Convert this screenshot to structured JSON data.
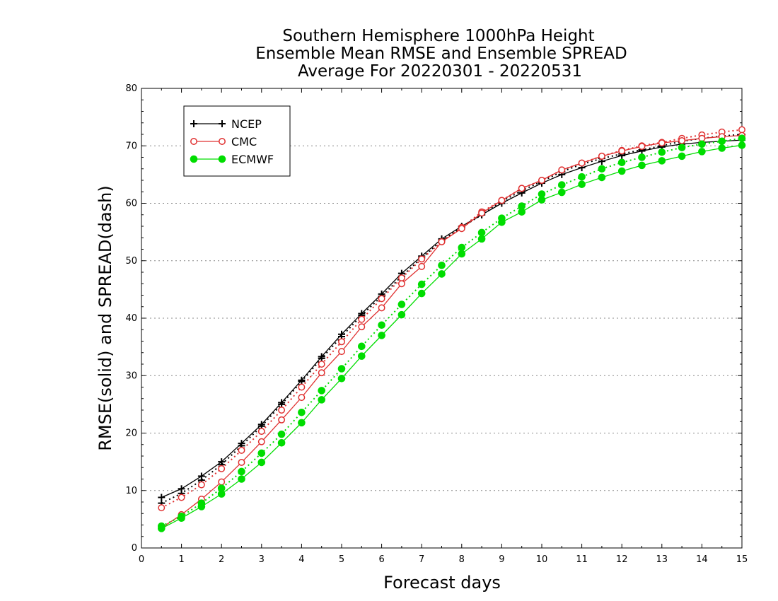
{
  "chart_data": {
    "type": "line",
    "title": [
      "Southern Hemisphere 1000hPa Height",
      "Ensemble Mean RMSE and Ensemble SPREAD",
      "Average For 20220301 - 20220531"
    ],
    "xlabel": "Forecast days",
    "ylabel": "RMSE(solid) and SPREAD(dash)",
    "xlim": [
      0,
      15
    ],
    "ylim": [
      0,
      80
    ],
    "xticks": [
      "0",
      "1",
      "2",
      "3",
      "4",
      "5",
      "6",
      "7",
      "8",
      "9",
      "10",
      "11",
      "12",
      "13",
      "14",
      "15"
    ],
    "yticks": [
      "0",
      "10",
      "20",
      "30",
      "40",
      "50",
      "60",
      "70",
      "80"
    ],
    "grid": "horizontal dotted",
    "legend_position": "top-left",
    "x": [
      0.5,
      1,
      1.5,
      2,
      2.5,
      3,
      3.5,
      4,
      4.5,
      5,
      5.5,
      6,
      6.5,
      7,
      7.5,
      8,
      8.5,
      9,
      9.5,
      10,
      10.5,
      11,
      11.5,
      12,
      12.5,
      13,
      13.5,
      14,
      14.5,
      15
    ],
    "series": [
      {
        "name": "NCEP",
        "color": "#000000",
        "marker": "plus",
        "rmse": [
          8.8,
          10.3,
          12.5,
          15.0,
          18.2,
          21.5,
          25.3,
          29.2,
          33.3,
          37.2,
          40.8,
          44.2,
          47.8,
          50.8,
          53.8,
          56.0,
          58.0,
          60.0,
          61.8,
          63.5,
          65.0,
          66.2,
          67.3,
          68.3,
          69.1,
          69.8,
          70.3,
          70.6,
          70.8,
          71.0
        ],
        "spread": [
          7.8,
          9.5,
          11.8,
          14.5,
          17.8,
          21.2,
          25.0,
          29.0,
          33.0,
          36.8,
          40.5,
          43.8,
          47.3,
          50.5,
          53.5,
          55.8,
          58.0,
          60.3,
          62.2,
          63.8,
          65.5,
          66.8,
          67.8,
          68.6,
          69.3,
          70.0,
          70.8,
          71.3,
          71.7,
          72.0
        ]
      },
      {
        "name": "CMC",
        "color": "#e03030",
        "marker": "open-circle",
        "rmse": [
          3.5,
          5.8,
          8.5,
          11.5,
          14.9,
          18.5,
          22.3,
          26.2,
          30.5,
          34.2,
          38.5,
          41.8,
          46.0,
          49.0,
          53.3,
          55.6,
          58.3,
          60.5,
          62.6,
          64.0,
          65.8,
          67.0,
          68.2,
          69.1,
          69.9,
          70.5,
          70.9,
          71.3,
          71.6,
          71.8
        ],
        "spread": [
          7.0,
          8.8,
          11.0,
          13.8,
          17.0,
          20.3,
          24.0,
          28.0,
          32.0,
          35.9,
          39.8,
          43.4,
          47.0,
          50.3,
          53.3,
          55.8,
          58.5,
          60.5,
          62.6,
          64.0,
          65.8,
          67.0,
          68.2,
          69.2,
          70.0,
          70.6,
          71.3,
          71.9,
          72.4,
          72.8
        ]
      },
      {
        "name": "ECMWF",
        "color": "#00dd00",
        "marker": "filled-circle",
        "rmse": [
          3.4,
          5.2,
          7.2,
          9.4,
          12.0,
          14.9,
          18.3,
          21.8,
          25.8,
          29.5,
          33.4,
          37.0,
          40.6,
          44.3,
          47.7,
          51.2,
          53.8,
          56.7,
          58.5,
          60.6,
          61.9,
          63.3,
          64.5,
          65.6,
          66.6,
          67.4,
          68.2,
          69.0,
          69.6,
          70.1
        ],
        "spread": [
          3.8,
          5.5,
          7.8,
          10.4,
          13.3,
          16.5,
          19.8,
          23.6,
          27.4,
          31.2,
          35.1,
          38.8,
          42.4,
          45.9,
          49.2,
          52.3,
          54.9,
          57.4,
          59.5,
          61.6,
          63.2,
          64.6,
          66.0,
          67.1,
          68.0,
          68.9,
          69.7,
          70.3,
          70.8,
          71.3
        ]
      }
    ]
  }
}
